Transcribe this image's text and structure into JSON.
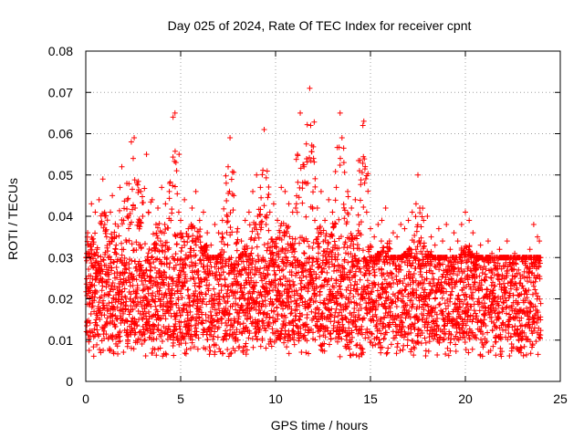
{
  "chart_data": {
    "type": "scatter",
    "title": "Day 025 of 2024, Rate Of TEC Index for receiver cpnt",
    "xlabel": "GPS time / hours",
    "ylabel": "ROTI / TECUs",
    "xlim": [
      0,
      25
    ],
    "ylim": [
      0,
      0.08
    ],
    "x_ticks": [
      "0",
      "5",
      "10",
      "15",
      "20",
      "25"
    ],
    "y_ticks": [
      "0",
      "0.01",
      "0.02",
      "0.03",
      "0.04",
      "0.05",
      "0.06",
      "0.07",
      "0.08"
    ],
    "grid": true,
    "marker": "+",
    "series": [
      {
        "name": "ROTI",
        "color": "#ff0000",
        "x": [
          0.05,
          0.1,
          0.2,
          0.3,
          0.35,
          0.5,
          0.6,
          0.7,
          0.8,
          0.9,
          1.0,
          1.1,
          1.3,
          1.4,
          1.6,
          1.8,
          1.9,
          2.0,
          2.2,
          2.4,
          2.5,
          2.55,
          2.6,
          2.7,
          2.9,
          3.0,
          3.2,
          3.3,
          3.5,
          3.7,
          3.8,
          4.0,
          4.2,
          4.4,
          4.6,
          4.7,
          4.75,
          4.9,
          5.0,
          5.2,
          5.4,
          5.6,
          5.8,
          6.0,
          6.2,
          6.4,
          6.6,
          6.8,
          7.0,
          7.2,
          7.4,
          7.5,
          7.6,
          7.8,
          8.0,
          8.2,
          8.4,
          8.6,
          8.8,
          9.0,
          9.2,
          9.4,
          9.5,
          9.7,
          9.9,
          10.1,
          10.3,
          10.5,
          10.7,
          10.9,
          11.1,
          11.3,
          11.5,
          11.7,
          11.8,
          11.85,
          12.0,
          12.2,
          12.4,
          12.6,
          12.8,
          13.0,
          13.2,
          13.4,
          13.5,
          13.6,
          13.8,
          14.0,
          14.2,
          14.4,
          14.6,
          14.65,
          14.8,
          15.0,
          15.2,
          15.4,
          15.6,
          15.8,
          16.0,
          16.2,
          16.4,
          16.6,
          16.8,
          17.0,
          17.2,
          17.4,
          17.5,
          17.6,
          17.8,
          18.0,
          18.2,
          18.4,
          18.6,
          18.8,
          19.0,
          19.2,
          19.4,
          19.6,
          19.8,
          20.0,
          20.2,
          20.4,
          20.6,
          20.8,
          21.0,
          21.2,
          21.4,
          21.6,
          21.8,
          22.0,
          22.2,
          22.4,
          22.6,
          22.8,
          23.0,
          23.2,
          23.4,
          23.6,
          23.8,
          23.9
        ],
        "y": [
          0.031,
          0.036,
          0.022,
          0.043,
          0.028,
          0.041,
          0.032,
          0.044,
          0.027,
          0.049,
          0.038,
          0.035,
          0.041,
          0.045,
          0.033,
          0.047,
          0.052,
          0.039,
          0.044,
          0.058,
          0.054,
          0.059,
          0.042,
          0.048,
          0.046,
          0.04,
          0.055,
          0.041,
          0.044,
          0.038,
          0.042,
          0.047,
          0.043,
          0.046,
          0.064,
          0.065,
          0.053,
          0.041,
          0.039,
          0.044,
          0.037,
          0.042,
          0.046,
          0.039,
          0.041,
          0.036,
          0.033,
          0.038,
          0.036,
          0.039,
          0.048,
          0.052,
          0.059,
          0.045,
          0.037,
          0.034,
          0.039,
          0.041,
          0.046,
          0.05,
          0.047,
          0.061,
          0.038,
          0.041,
          0.043,
          0.039,
          0.047,
          0.046,
          0.043,
          0.041,
          0.043,
          0.065,
          0.052,
          0.048,
          0.071,
          0.062,
          0.054,
          0.042,
          0.046,
          0.039,
          0.044,
          0.041,
          0.047,
          0.065,
          0.059,
          0.053,
          0.046,
          0.042,
          0.044,
          0.038,
          0.062,
          0.063,
          0.041,
          0.037,
          0.035,
          0.038,
          0.039,
          0.042,
          0.034,
          0.036,
          0.035,
          0.038,
          0.037,
          0.039,
          0.041,
          0.043,
          0.05,
          0.042,
          0.039,
          0.04,
          0.035,
          0.033,
          0.037,
          0.034,
          0.038,
          0.032,
          0.036,
          0.034,
          0.038,
          0.041,
          0.039,
          0.036,
          0.031,
          0.033,
          0.029,
          0.034,
          0.031,
          0.028,
          0.032,
          0.03,
          0.034,
          0.028,
          0.031,
          0.027,
          0.029,
          0.03,
          0.032,
          0.038,
          0.035,
          0.034
        ]
      }
    ],
    "lower_envelope_approx": 0.008,
    "dense_band_range": [
      0.01,
      0.03
    ]
  }
}
